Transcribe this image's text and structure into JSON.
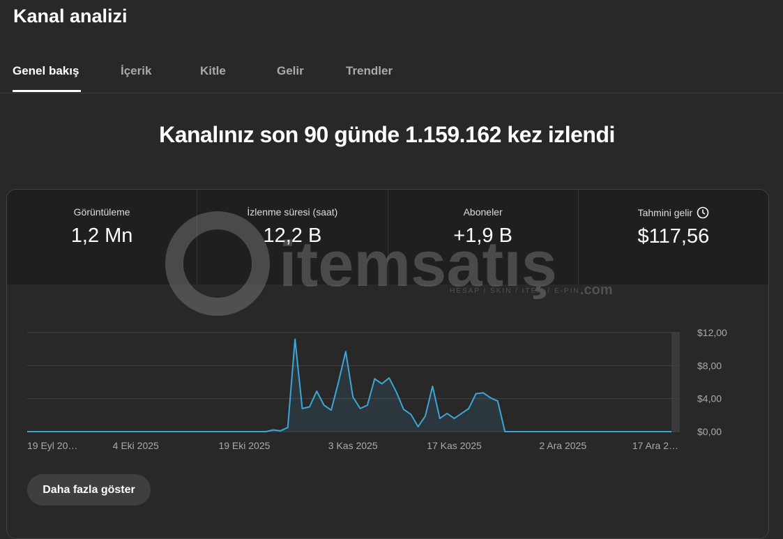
{
  "header": {
    "title": "Kanal analizi"
  },
  "tabs": [
    "Genel bakış",
    "İçerik",
    "Kitle",
    "Gelir",
    "Trendler"
  ],
  "headline": "Kanalınız son 90 günde 1.159.162 kez izlendi",
  "metrics": [
    {
      "label": "Görüntüleme",
      "value": "1,2 Mn"
    },
    {
      "label": "İzlenme süresi (saat)",
      "value": "12,2 B"
    },
    {
      "label": "Aboneler",
      "value": "+1,9 B"
    },
    {
      "label": "Tahmini gelir",
      "value": "$117,56"
    }
  ],
  "watermark": {
    "brand": "itemsatış",
    "tagline": "HESAP / SKIN / ITEM / E-PIN",
    "domain": ".com"
  },
  "chart_data": {
    "type": "line",
    "color": "#3ea6d6",
    "grid": true,
    "categories": [
      "19 Eyl 20…",
      null,
      null,
      null,
      null,
      null,
      null,
      null,
      null,
      null,
      null,
      null,
      null,
      null,
      null,
      "4 Eki 2025",
      null,
      null,
      null,
      null,
      null,
      null,
      null,
      null,
      null,
      null,
      null,
      null,
      null,
      null,
      "19 Eki 2025",
      null,
      null,
      null,
      null,
      null,
      null,
      null,
      null,
      null,
      null,
      null,
      null,
      null,
      null,
      "3 Kas 2025",
      null,
      null,
      null,
      null,
      null,
      null,
      null,
      null,
      null,
      null,
      null,
      null,
      null,
      "17 Kas 2025",
      null,
      null,
      null,
      null,
      null,
      null,
      null,
      null,
      null,
      null,
      null,
      null,
      null,
      null,
      "2 Ara 2025",
      null,
      null,
      null,
      null,
      null,
      null,
      null,
      null,
      null,
      null,
      null,
      null,
      null,
      null,
      "17 Ara 2…"
    ],
    "values": [
      0,
      0,
      0,
      0,
      0,
      0,
      0,
      0,
      0,
      0,
      0,
      0,
      0,
      0,
      0,
      0,
      0,
      0,
      0,
      0,
      0,
      0,
      0,
      0,
      0,
      0,
      0,
      0,
      0,
      0,
      0,
      0,
      0,
      0,
      0.2,
      0.1,
      0.5,
      11.2,
      2.8,
      3.0,
      4.9,
      3.2,
      2.6,
      6.0,
      9.7,
      4.2,
      2.8,
      3.2,
      6.4,
      5.8,
      6.5,
      4.8,
      2.7,
      2.1,
      0.6,
      1.9,
      5.5,
      1.6,
      2.2,
      1.6,
      2.2,
      2.8,
      4.6,
      4.7,
      4.1,
      3.7,
      0,
      0,
      0,
      0,
      0,
      0,
      0,
      0,
      0,
      0,
      0,
      0,
      0,
      0,
      0,
      0,
      0,
      0,
      0,
      0,
      0,
      0,
      0,
      0
    ],
    "ylim": [
      0,
      12
    ],
    "yticks": [
      {
        "value": 0,
        "label": "$0,00"
      },
      {
        "value": 4,
        "label": "$4,00"
      },
      {
        "value": 8,
        "label": "$8,00"
      },
      {
        "value": 12,
        "label": "$12,00"
      }
    ]
  },
  "button": "Daha fazla göster"
}
